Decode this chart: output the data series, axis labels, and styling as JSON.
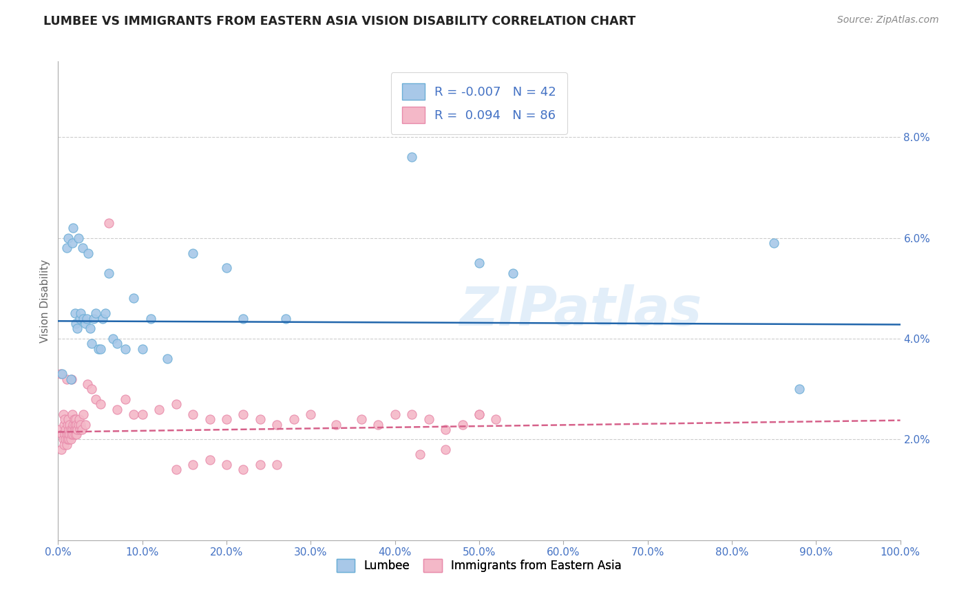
{
  "title": "LUMBEE VS IMMIGRANTS FROM EASTERN ASIA VISION DISABILITY CORRELATION CHART",
  "source": "Source: ZipAtlas.com",
  "ylabel": "Vision Disability",
  "x_min": 0.0,
  "x_max": 100.0,
  "y_min": 0.0,
  "y_max": 9.5,
  "y_ticks": [
    2.0,
    4.0,
    6.0,
    8.0
  ],
  "x_ticks": [
    0.0,
    10.0,
    20.0,
    30.0,
    40.0,
    50.0,
    60.0,
    70.0,
    80.0,
    90.0,
    100.0
  ],
  "lumbee_color": "#a8c8e8",
  "lumbee_edge_color": "#6baed6",
  "immigrants_color": "#f4b8c8",
  "immigrants_edge_color": "#e88aaa",
  "lumbee_R": "-0.007",
  "lumbee_N": "42",
  "immigrants_R": "0.094",
  "immigrants_N": "86",
  "lumbee_trend_color": "#2166ac",
  "immigrants_trend_color": "#d6618a",
  "background_color": "#ffffff",
  "grid_color": "#cccccc",
  "watermark": "ZIPatlas",
  "lumbee_x": [
    0.5,
    1.0,
    1.2,
    1.5,
    1.7,
    1.8,
    2.0,
    2.1,
    2.3,
    2.4,
    2.6,
    2.7,
    2.9,
    3.0,
    3.2,
    3.4,
    3.6,
    3.8,
    4.0,
    4.2,
    4.5,
    4.8,
    5.0,
    5.3,
    5.6,
    6.0,
    6.5,
    7.0,
    8.0,
    9.0,
    10.0,
    11.0,
    13.0,
    16.0,
    20.0,
    22.0,
    27.0,
    42.0,
    50.0,
    54.0,
    85.0,
    88.0
  ],
  "lumbee_y": [
    3.3,
    5.8,
    6.0,
    3.2,
    5.9,
    6.2,
    4.5,
    4.3,
    4.2,
    6.0,
    4.4,
    4.5,
    5.8,
    4.4,
    4.3,
    4.4,
    5.7,
    4.2,
    3.9,
    4.4,
    4.5,
    3.8,
    3.8,
    4.4,
    4.5,
    5.3,
    4.0,
    3.9,
    3.8,
    4.8,
    3.8,
    4.4,
    3.6,
    5.7,
    5.4,
    4.4,
    4.4,
    7.6,
    5.5,
    5.3,
    5.9,
    3.0
  ],
  "immigrants_x": [
    0.2,
    0.3,
    0.4,
    0.5,
    0.6,
    0.6,
    0.7,
    0.7,
    0.8,
    0.8,
    0.9,
    0.9,
    1.0,
    1.0,
    1.0,
    1.1,
    1.1,
    1.2,
    1.2,
    1.3,
    1.3,
    1.4,
    1.4,
    1.5,
    1.5,
    1.6,
    1.6,
    1.7,
    1.7,
    1.8,
    1.8,
    1.9,
    1.9,
    2.0,
    2.0,
    2.1,
    2.1,
    2.2,
    2.2,
    2.3,
    2.4,
    2.5,
    2.6,
    2.7,
    2.8,
    3.0,
    3.2,
    3.5,
    4.0,
    4.5,
    5.0,
    6.0,
    7.0,
    8.0,
    9.0,
    10.0,
    12.0,
    14.0,
    16.0,
    18.0,
    20.0,
    22.0,
    24.0,
    26.0,
    28.0,
    30.0,
    33.0,
    36.0,
    38.0,
    40.0,
    42.0,
    44.0,
    46.0,
    48.0,
    50.0,
    52.0,
    14.0,
    16.0,
    18.0,
    20.0,
    22.0,
    24.0,
    26.0,
    43.0,
    46.0,
    50.0
  ],
  "immigrants_y": [
    2.2,
    3.3,
    1.8,
    2.1,
    2.0,
    2.5,
    1.9,
    2.3,
    2.1,
    2.4,
    2.0,
    2.2,
    1.9,
    2.1,
    3.2,
    2.0,
    2.3,
    2.1,
    2.4,
    2.0,
    2.2,
    2.1,
    2.3,
    2.0,
    2.2,
    3.2,
    2.1,
    2.5,
    2.2,
    2.3,
    2.1,
    2.4,
    2.2,
    2.1,
    2.3,
    2.2,
    2.4,
    2.1,
    2.3,
    2.2,
    2.3,
    2.4,
    2.2,
    2.3,
    2.2,
    2.5,
    2.3,
    3.1,
    3.0,
    2.8,
    2.7,
    6.3,
    2.6,
    2.8,
    2.5,
    2.5,
    2.6,
    2.7,
    2.5,
    2.4,
    2.4,
    2.5,
    2.4,
    2.3,
    2.4,
    2.5,
    2.3,
    2.4,
    2.3,
    2.5,
    2.5,
    2.4,
    2.2,
    2.3,
    2.5,
    2.4,
    1.4,
    1.5,
    1.6,
    1.5,
    1.4,
    1.5,
    1.5,
    1.7,
    1.8,
    2.5
  ]
}
